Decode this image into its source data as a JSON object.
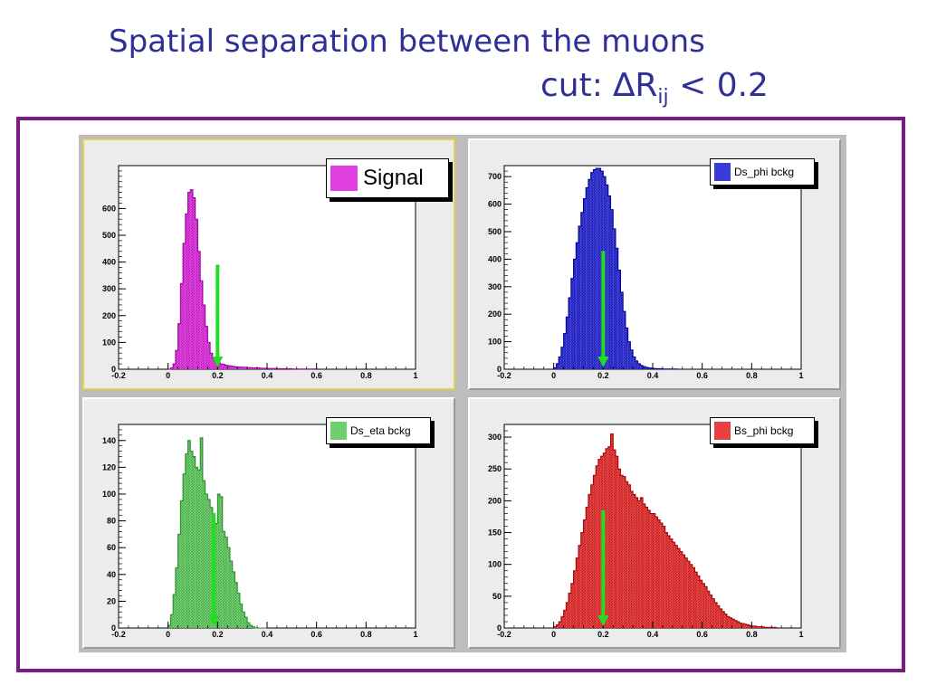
{
  "title": {
    "line1": "Spatial separation between the muons",
    "cut_prefix": "cut: ",
    "cut_symbol": "∆R",
    "cut_subscript": "ij",
    "cut_suffix": " < 0.2"
  },
  "colors": {
    "title": "#2f2f96",
    "frame": "#7b1b86",
    "arrow": "#22dd22",
    "signal": "#e040e0",
    "ds_phi": "#3a3ad8",
    "ds_eta": "#6fcf6f",
    "bs_phi": "#e84040"
  },
  "chart_data": [
    {
      "type": "bar",
      "legend": "Signal",
      "legend_placement": "top-right",
      "color": "#e040e0",
      "xlim": [
        -0.2,
        1
      ],
      "ylim": [
        0,
        760
      ],
      "xticks": [
        "-0.2",
        "0",
        "0.2",
        "0.4",
        "0.6",
        "0.8",
        "1"
      ],
      "yticks": [
        0,
        100,
        200,
        300,
        400,
        500,
        600
      ],
      "bin_width": 0.01,
      "x_start": 0,
      "values": [
        0,
        5,
        20,
        70,
        170,
        320,
        470,
        580,
        660,
        670,
        640,
        560,
        440,
        330,
        240,
        160,
        100,
        60,
        40,
        30,
        25,
        20,
        18,
        15,
        13,
        12,
        10,
        9,
        8,
        8,
        7,
        7,
        6,
        6,
        5,
        5,
        5,
        4,
        4,
        4,
        3,
        3,
        3,
        3,
        2,
        2,
        2,
        2,
        2,
        2,
        1,
        1,
        1,
        1,
        1,
        1,
        1,
        1,
        1,
        1
      ],
      "cut_arrow": {
        "x": 0.2,
        "y_top": 390,
        "y_bottom": 0
      }
    },
    {
      "type": "bar",
      "legend": "Ds_phi bckg",
      "legend_placement": "top-right",
      "color": "#3a3ad8",
      "xlim": [
        -0.2,
        1
      ],
      "ylim": [
        0,
        740
      ],
      "xticks": [
        "-0.2",
        "0",
        "0.2",
        "0.4",
        "0.6",
        "0.8",
        "1"
      ],
      "yticks": [
        0,
        100,
        200,
        300,
        400,
        500,
        600,
        700
      ],
      "bin_width": 0.01,
      "x_start": 0,
      "values": [
        5,
        20,
        45,
        80,
        130,
        190,
        260,
        330,
        400,
        460,
        520,
        570,
        620,
        660,
        690,
        715,
        725,
        730,
        730,
        720,
        700,
        670,
        630,
        580,
        510,
        440,
        360,
        280,
        210,
        150,
        100,
        70,
        45,
        30,
        20,
        14,
        10,
        7,
        5,
        4,
        3,
        2,
        2,
        2,
        1,
        1,
        1,
        1,
        1,
        1
      ],
      "cut_arrow": {
        "x": 0.2,
        "y_top": 430,
        "y_bottom": 0
      }
    },
    {
      "type": "bar",
      "legend": "Ds_eta bckg",
      "legend_placement": "top-right",
      "color": "#6fcf6f",
      "xlim": [
        -0.2,
        1
      ],
      "ylim": [
        0,
        152
      ],
      "xticks": [
        "-0.2",
        "0",
        "0.2",
        "0.4",
        "0.6",
        "0.8",
        "1"
      ],
      "yticks": [
        0,
        20,
        40,
        60,
        80,
        100,
        120,
        140
      ],
      "bin_width": 0.01,
      "x_start": 0,
      "values": [
        2,
        10,
        25,
        45,
        70,
        95,
        115,
        130,
        140,
        132,
        128,
        120,
        118,
        142,
        110,
        100,
        96,
        90,
        82,
        78,
        100,
        98,
        72,
        68,
        60,
        50,
        42,
        34,
        26,
        18,
        12,
        8,
        4,
        2,
        1,
        0,
        0,
        0,
        0,
        0
      ],
      "cut_arrow": {
        "x": 0.185,
        "y_top": 86,
        "y_bottom": 0
      }
    },
    {
      "type": "bar",
      "legend": "Bs_phi bckg",
      "legend_placement": "top-right",
      "color": "#e84040",
      "xlim": [
        -0.2,
        1
      ],
      "ylim": [
        0,
        320
      ],
      "xticks": [
        "-0.2",
        "0",
        "0.2",
        "0.4",
        "0.6",
        "0.8",
        "1"
      ],
      "yticks": [
        0,
        50,
        100,
        150,
        200,
        250,
        300
      ],
      "bin_width": 0.01,
      "x_start": 0,
      "values": [
        2,
        5,
        10,
        18,
        28,
        40,
        55,
        70,
        90,
        110,
        130,
        150,
        170,
        190,
        210,
        225,
        240,
        255,
        265,
        270,
        275,
        282,
        285,
        305,
        280,
        270,
        250,
        240,
        238,
        230,
        225,
        215,
        210,
        205,
        200,
        205,
        195,
        190,
        185,
        180,
        180,
        175,
        170,
        165,
        160,
        150,
        145,
        140,
        135,
        130,
        125,
        120,
        115,
        110,
        105,
        100,
        95,
        88,
        82,
        75,
        70,
        65,
        58,
        52,
        46,
        40,
        35,
        30,
        26,
        22,
        18,
        16,
        14,
        12,
        10,
        8,
        7,
        6,
        5,
        4,
        3,
        3,
        2,
        2,
        2,
        1,
        1,
        1,
        1,
        1
      ],
      "cut_arrow": {
        "x": 0.2,
        "y_top": 185,
        "y_bottom": 0
      }
    }
  ]
}
